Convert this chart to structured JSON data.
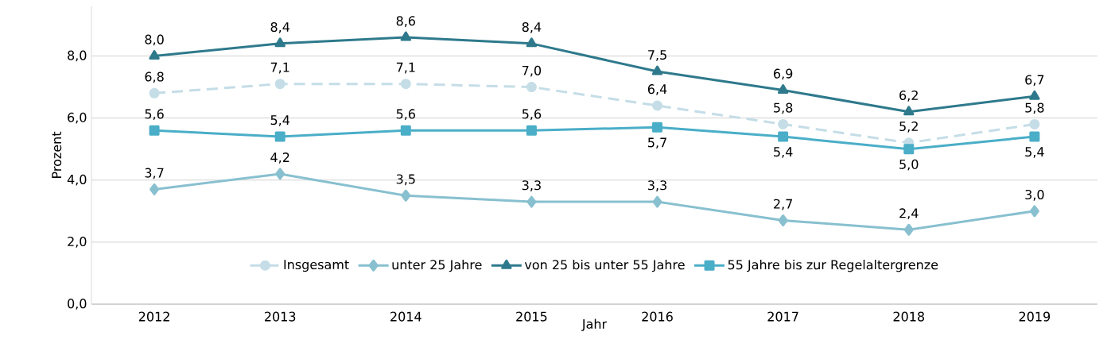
{
  "chart_data": {
    "type": "line",
    "xlabel": "Jahr",
    "ylabel": "Prozent",
    "categories": [
      "2012",
      "2013",
      "2014",
      "2015",
      "2016",
      "2017",
      "2018",
      "2019"
    ],
    "series": [
      {
        "name": "Insgesamt",
        "color": "#c5dde6",
        "marker": "circle",
        "line_style": "dashed",
        "values": [
          6.8,
          7.1,
          7.1,
          7.0,
          6.4,
          5.8,
          5.2,
          5.8
        ],
        "value_labels": [
          "6,8",
          "7,1",
          "7,1",
          "7,0",
          "6,4",
          "5,8",
          "5,2",
          "5,8"
        ]
      },
      {
        "name": "unter 25 Jahre",
        "color": "#88c0d0",
        "marker": "diamond",
        "line_style": "solid",
        "values": [
          3.7,
          4.2,
          3.5,
          3.3,
          3.3,
          2.7,
          2.4,
          3.0
        ],
        "value_labels": [
          "3,7",
          "4,2",
          "3,5",
          "3,3",
          "3,3",
          "2,7",
          "2,4",
          "3,0"
        ]
      },
      {
        "name": "von 25 bis unter 55 Jahre",
        "color": "#2e7a8c",
        "marker": "triangle",
        "line_style": "solid",
        "values": [
          8.0,
          8.4,
          8.6,
          8.4,
          7.5,
          6.9,
          6.2,
          6.7
        ],
        "value_labels": [
          "8,0",
          "8,4",
          "8,6",
          "8,4",
          "7,5",
          "6,9",
          "6,2",
          "6,7"
        ]
      },
      {
        "name": "55 Jahre bis zur Regelaltergrenze",
        "color": "#4aaec8",
        "marker": "square",
        "line_style": "solid",
        "values": [
          5.6,
          5.4,
          5.6,
          5.6,
          5.7,
          5.4,
          5.0,
          5.4
        ],
        "value_labels": [
          "5,6",
          "5,4",
          "5,6",
          "5,6",
          "5,7",
          "5,4",
          "5,0",
          "5,4"
        ]
      }
    ],
    "ylim": [
      0,
      9.6
    ],
    "yticks": [
      {
        "value": 0,
        "label": "0,0"
      },
      {
        "value": 2,
        "label": "2,0"
      },
      {
        "value": 4,
        "label": "4,0"
      },
      {
        "value": 6,
        "label": "6,0"
      },
      {
        "value": 8,
        "label": "8,0"
      }
    ],
    "grid": "y",
    "legend": "bottom"
  }
}
